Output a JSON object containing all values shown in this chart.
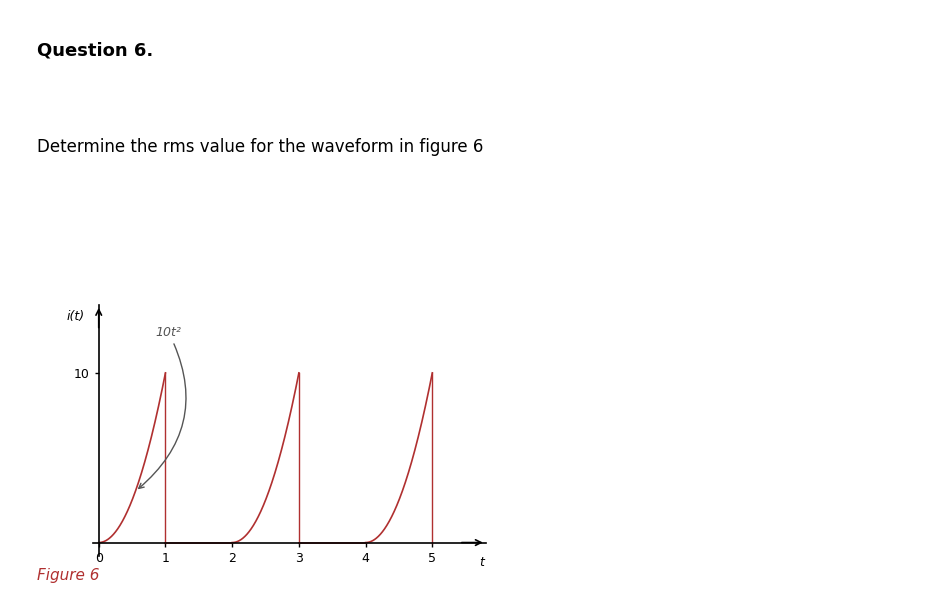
{
  "title_text": "Question 6.",
  "description": "Determine the rms value for the waveform in figure 6",
  "figure_label": "Figure 6",
  "ylabel": "i(t)",
  "xlabel": "t",
  "annotation_text": "10t²",
  "y_tick_label": "10",
  "y_tick_value": 10,
  "xlim": [
    -0.08,
    5.8
  ],
  "ylim": [
    -0.8,
    14
  ],
  "waveform_color": "#b03030",
  "period": 2,
  "num_periods": 3,
  "background_color": "#ffffff",
  "header_bar_color": "#cccccc",
  "title_color": "#000000",
  "desc_color": "#000000",
  "fig_label_color": "#b03030",
  "annotation_color": "#555555"
}
